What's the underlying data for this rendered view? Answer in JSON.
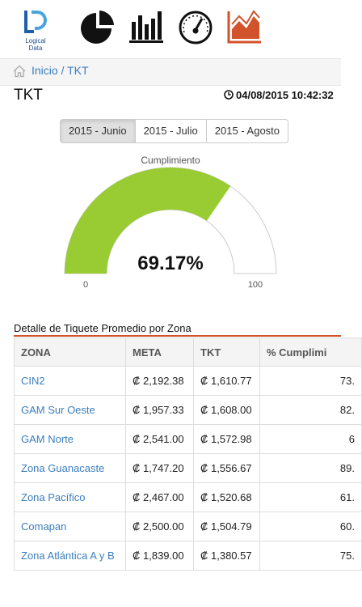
{
  "header": {
    "logo_text": "Logical Data",
    "logo_letters": "LD",
    "nav_icons": [
      "pie-chart-icon",
      "bar-chart-icon",
      "speedometer-icon",
      "area-chart-icon"
    ],
    "accent_color": "#d2522c",
    "dark_color": "#111111"
  },
  "breadcrumb": {
    "text": "Inicio / TKT",
    "icon": "home-icon"
  },
  "page": {
    "title": "TKT",
    "datetime": "04/08/2015 10:42:32"
  },
  "months": {
    "items": [
      "2015 - Junio",
      "2015 - Julio",
      "2015 - Agosto"
    ],
    "selected_index": 0
  },
  "gauge": {
    "title": "Cumplimiento",
    "value": 69.17,
    "value_label": "69.17%",
    "min": 0,
    "max": 100,
    "min_label": "0",
    "max_label": "100",
    "fill_color": "#99cc33"
  },
  "table": {
    "title": "Detalle de Tiquete Promedio por Zona",
    "columns": [
      "ZONA",
      "META",
      "TKT",
      "% Cumplimi"
    ],
    "rows": [
      {
        "zona": "CIN2",
        "meta": "₡ 2,192.38",
        "tkt": "₡ 1,610.77",
        "pct": "73."
      },
      {
        "zona": "GAM Sur Oeste",
        "meta": "₡ 1,957.33",
        "tkt": "₡ 1,608.00",
        "pct": "82."
      },
      {
        "zona": "GAM Norte",
        "meta": "₡ 2,541.00",
        "tkt": "₡ 1,572.98",
        "pct": "6"
      },
      {
        "zona": "Zona Guanacaste",
        "meta": "₡ 1,747.20",
        "tkt": "₡ 1,556.67",
        "pct": "89."
      },
      {
        "zona": "Zona Pacífico",
        "meta": "₡ 2,467.00",
        "tkt": "₡ 1,520.68",
        "pct": "61."
      },
      {
        "zona": "Comapan",
        "meta": "₡ 2,500.00",
        "tkt": "₡ 1,504.79",
        "pct": "60."
      },
      {
        "zona": "Zona Atlántica A y B",
        "meta": "₡ 1,839.00",
        "tkt": "₡ 1,380.57",
        "pct": "75."
      }
    ]
  }
}
